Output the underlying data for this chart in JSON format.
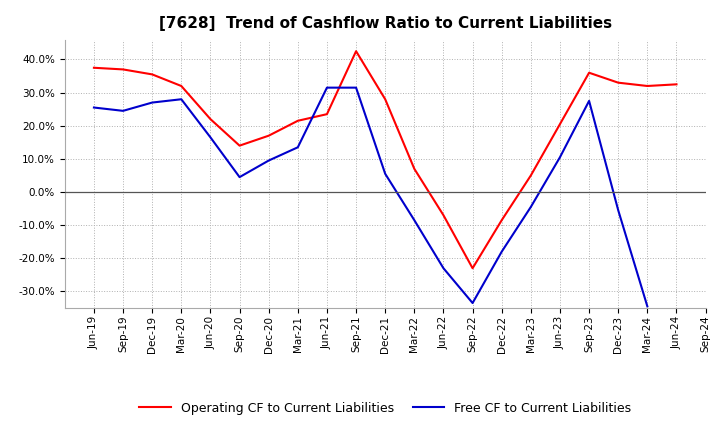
{
  "title": "[7628]  Trend of Cashflow Ratio to Current Liabilities",
  "x_labels": [
    "Jun-19",
    "Sep-19",
    "Dec-19",
    "Mar-20",
    "Jun-20",
    "Sep-20",
    "Dec-20",
    "Mar-21",
    "Jun-21",
    "Sep-21",
    "Dec-21",
    "Mar-22",
    "Jun-22",
    "Sep-22",
    "Dec-22",
    "Mar-23",
    "Jun-23",
    "Sep-23",
    "Dec-23",
    "Mar-24",
    "Jun-24",
    "Sep-24"
  ],
  "operating_cf": [
    0.375,
    0.37,
    0.355,
    0.32,
    0.22,
    0.14,
    0.17,
    0.215,
    0.235,
    0.425,
    0.28,
    0.07,
    -0.07,
    -0.23,
    -0.085,
    0.05,
    0.205,
    0.36,
    0.33,
    0.32,
    0.325,
    null
  ],
  "free_cf": [
    0.255,
    0.245,
    0.27,
    0.28,
    0.165,
    0.045,
    0.095,
    0.135,
    0.315,
    0.315,
    0.055,
    -0.085,
    -0.23,
    -0.335,
    -0.18,
    -0.045,
    0.105,
    0.275,
    -0.055,
    -0.345,
    null,
    null
  ],
  "ylim": [
    -0.35,
    0.46
  ],
  "yticks": [
    -0.3,
    -0.2,
    -0.1,
    0.0,
    0.1,
    0.2,
    0.3,
    0.4
  ],
  "operating_color": "#ff0000",
  "free_color": "#0000cc",
  "background_color": "#ffffff",
  "grid_color": "#b0b0b0",
  "legend_operating": "Operating CF to Current Liabilities",
  "legend_free": "Free CF to Current Liabilities",
  "title_fontsize": 11,
  "tick_fontsize": 7.5,
  "legend_fontsize": 9
}
